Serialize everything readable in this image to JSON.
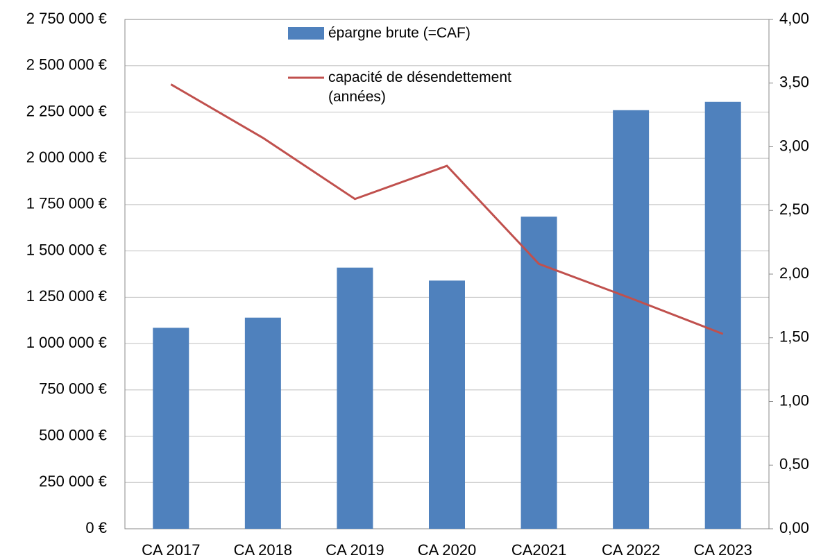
{
  "chart_data": {
    "type": "bar_line",
    "categories": [
      "CA 2017",
      "CA 2018",
      "CA 2019",
      "CA 2020",
      "CA2021",
      "CA 2022",
      "CA 2023"
    ],
    "series": [
      {
        "name": "épargne brute (=CAF)",
        "color": "#4f81bd",
        "type": "bar",
        "values": [
          1085000,
          1140000,
          1410000,
          1340000,
          1685000,
          2260000,
          2305000
        ]
      },
      {
        "name": "capacité de désendettement (années)",
        "color": "#c0504d",
        "type": "line",
        "axis": "y2",
        "values": [
          3.49,
          3.07,
          2.59,
          2.85,
          2.08,
          1.81,
          1.53
        ]
      }
    ],
    "ylim": [
      0,
      2750000
    ],
    "yticks": [
      {
        "value": 0,
        "label": "0 €"
      },
      {
        "value": 250000,
        "label": "250 000 €"
      },
      {
        "value": 500000,
        "label": "500 000 €"
      },
      {
        "value": 750000,
        "label": "750 000 €"
      },
      {
        "value": 1000000,
        "label": "1 000 000 €"
      },
      {
        "value": 1250000,
        "label": "1 250 000 €"
      },
      {
        "value": 1500000,
        "label": "1 500 000 €"
      },
      {
        "value": 1750000,
        "label": "1 750 000 €"
      },
      {
        "value": 2000000,
        "label": "2 000 000 €"
      },
      {
        "value": 2250000,
        "label": "2 250 000 €"
      },
      {
        "value": 2500000,
        "label": "2 500 000 €"
      },
      {
        "value": 2750000,
        "label": "2 750 000 €"
      }
    ],
    "y2lim": [
      0,
      4
    ],
    "y2ticks": [
      {
        "value": 0,
        "label": "0,00"
      },
      {
        "value": 0.5,
        "label": "0,50"
      },
      {
        "value": 1,
        "label": "1,00"
      },
      {
        "value": 1.5,
        "label": "1,50"
      },
      {
        "value": 2,
        "label": "2,00"
      },
      {
        "value": 2.5,
        "label": "2,50"
      },
      {
        "value": 3,
        "label": "3,00"
      },
      {
        "value": 3.5,
        "label": "3,50"
      },
      {
        "value": 4,
        "label": "4,00"
      }
    ],
    "grid": true
  }
}
